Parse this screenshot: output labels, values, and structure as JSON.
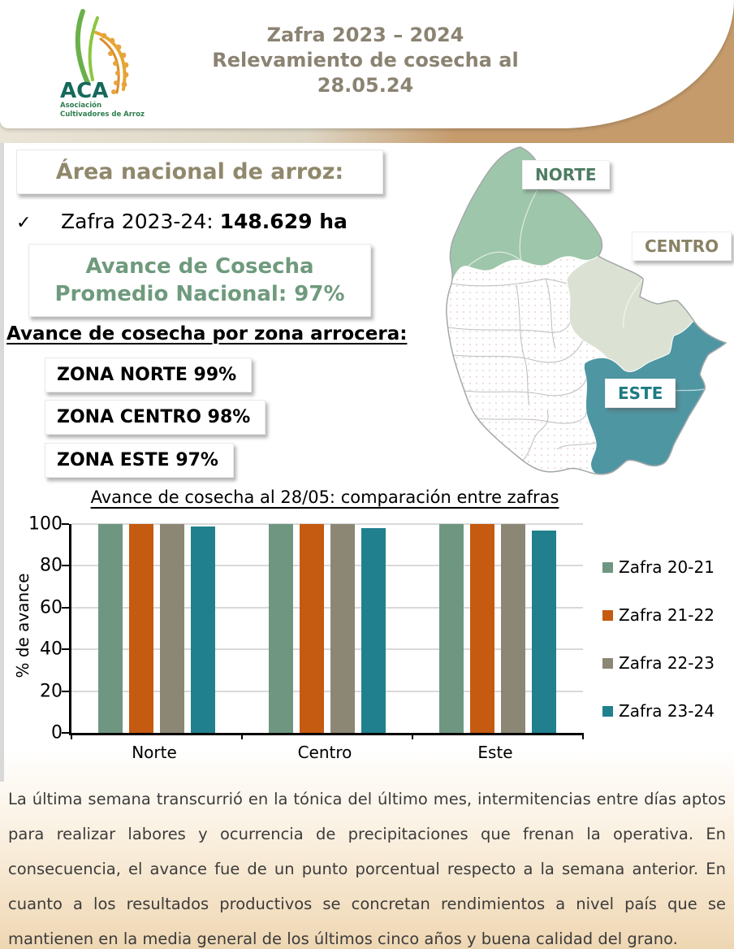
{
  "header": {
    "title_lines": [
      "Zafra 2023 – 2024",
      "Relevamiento de cosecha al",
      "28.05.24"
    ],
    "logo": {
      "acronym": "ACA",
      "name_line1": "Asociación",
      "name_line2": "Cultivadores de Arroz"
    }
  },
  "colors": {
    "accent_tan": "#c59b6c",
    "title_text": "#8b8372",
    "olive_heading": "#90886c",
    "green_heading": "#6f9a7d"
  },
  "area_section": {
    "heading": "Área nacional de arroz:",
    "bullet_check": "✓",
    "zafra_label": "Zafra 2023-24: ",
    "zafra_value": "148.629 ha",
    "avance_line1": "Avance de Cosecha",
    "avance_line2": "Promedio Nacional: 97%"
  },
  "zones_section": {
    "heading": "Avance de cosecha por zona arrocera:",
    "zones": [
      {
        "label": "ZONA NORTE 99%"
      },
      {
        "label": "ZONA CENTRO 98%"
      },
      {
        "label": "ZONA ESTE 97%"
      }
    ]
  },
  "map": {
    "labels": [
      {
        "text": "NORTE",
        "color": "#4e7d62"
      },
      {
        "text": "CENTRO",
        "color": "#8a8265"
      },
      {
        "text": "ESTE",
        "color": "#1d7a82"
      }
    ],
    "zone_colors": {
      "norte": "#9ec6ab",
      "centro": "#dbe2d3",
      "este": "#4f96a3"
    }
  },
  "chart_data": {
    "type": "bar",
    "title": "Avance de cosecha al 28/05: comparación entre zafras",
    "categories": [
      "Norte",
      "Centro",
      "Este"
    ],
    "series": [
      {
        "name": "Zafra 20-21",
        "color": "#6f9681",
        "values": [
          100,
          100,
          100
        ]
      },
      {
        "name": "Zafra 21-22",
        "color": "#c55a11",
        "values": [
          100,
          100,
          100
        ]
      },
      {
        "name": "Zafra 22-23",
        "color": "#8c8775",
        "values": [
          100,
          100,
          100
        ]
      },
      {
        "name": "Zafra 23-24",
        "color": "#20808d",
        "values": [
          99,
          98,
          97
        ]
      }
    ],
    "xlabel": "",
    "ylabel": "% de avance",
    "ylim": [
      0,
      100
    ],
    "yticks": [
      0,
      20,
      40,
      60,
      80,
      100
    ],
    "grid": true,
    "legend_position": "right"
  },
  "footer": {
    "text": "La última semana transcurrió en la tónica del último mes, intermitencias entre días aptos para realizar labores y ocurrencia de precipitaciones que frenan la operativa. En consecuencia, el avance fue de un punto porcentual respecto a la semana anterior. En cuanto a los resultados productivos se concretan rendimientos a nivel país que se mantienen en la media general de los últimos cinco años y buena calidad del grano."
  }
}
